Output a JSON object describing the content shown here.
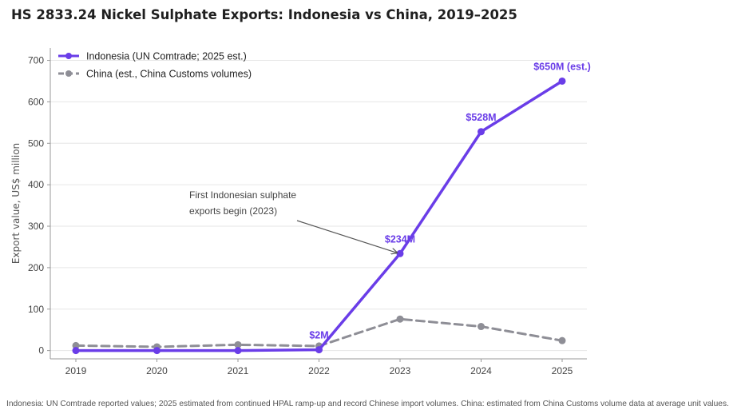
{
  "title": "HS 2833.24 Nickel Sulphate Exports: Indonesia vs China, 2019–2025",
  "footnote": "Indonesia: UN Comtrade reported values; 2025 estimated from continued HPAL ramp-up and record Chinese import volumes. China: estimated from China Customs volume data at average unit values.",
  "colors": {
    "indonesia": "#6a3de8",
    "china": "#8e8e96",
    "grid": "#e6e6e6",
    "axis": "#999999"
  },
  "chart_data": {
    "type": "line",
    "categories": [
      "2019",
      "2020",
      "2021",
      "2022",
      "2023",
      "2024",
      "2025"
    ],
    "ylabel": "Export value, US$ million",
    "ylim": [
      -20,
      730
    ],
    "yticks": [
      0,
      100,
      200,
      300,
      400,
      500,
      600,
      700
    ],
    "grid": true,
    "legend_position": "top-left",
    "series": [
      {
        "name": "Indonesia (UN Comtrade; 2025 est.)",
        "style": "solid",
        "values": [
          0,
          0,
          0,
          2,
          234,
          528,
          650
        ]
      },
      {
        "name": "China (est., China Customs volumes)",
        "style": "dashed",
        "values": [
          12,
          9,
          14,
          11,
          76,
          58,
          24
        ]
      }
    ],
    "data_labels": [
      {
        "category": "2022",
        "value": 2,
        "text": "$2M"
      },
      {
        "category": "2023",
        "value": 234,
        "text": "$234M"
      },
      {
        "category": "2024",
        "value": 528,
        "text": "$528M"
      },
      {
        "category": "2025",
        "value": 650,
        "text": "$650M (est.)"
      }
    ],
    "annotation": {
      "lines": [
        "First Indonesian sulphate",
        "exports begin (2023)"
      ],
      "points_to": {
        "category": "2023",
        "value": 234
      }
    }
  }
}
